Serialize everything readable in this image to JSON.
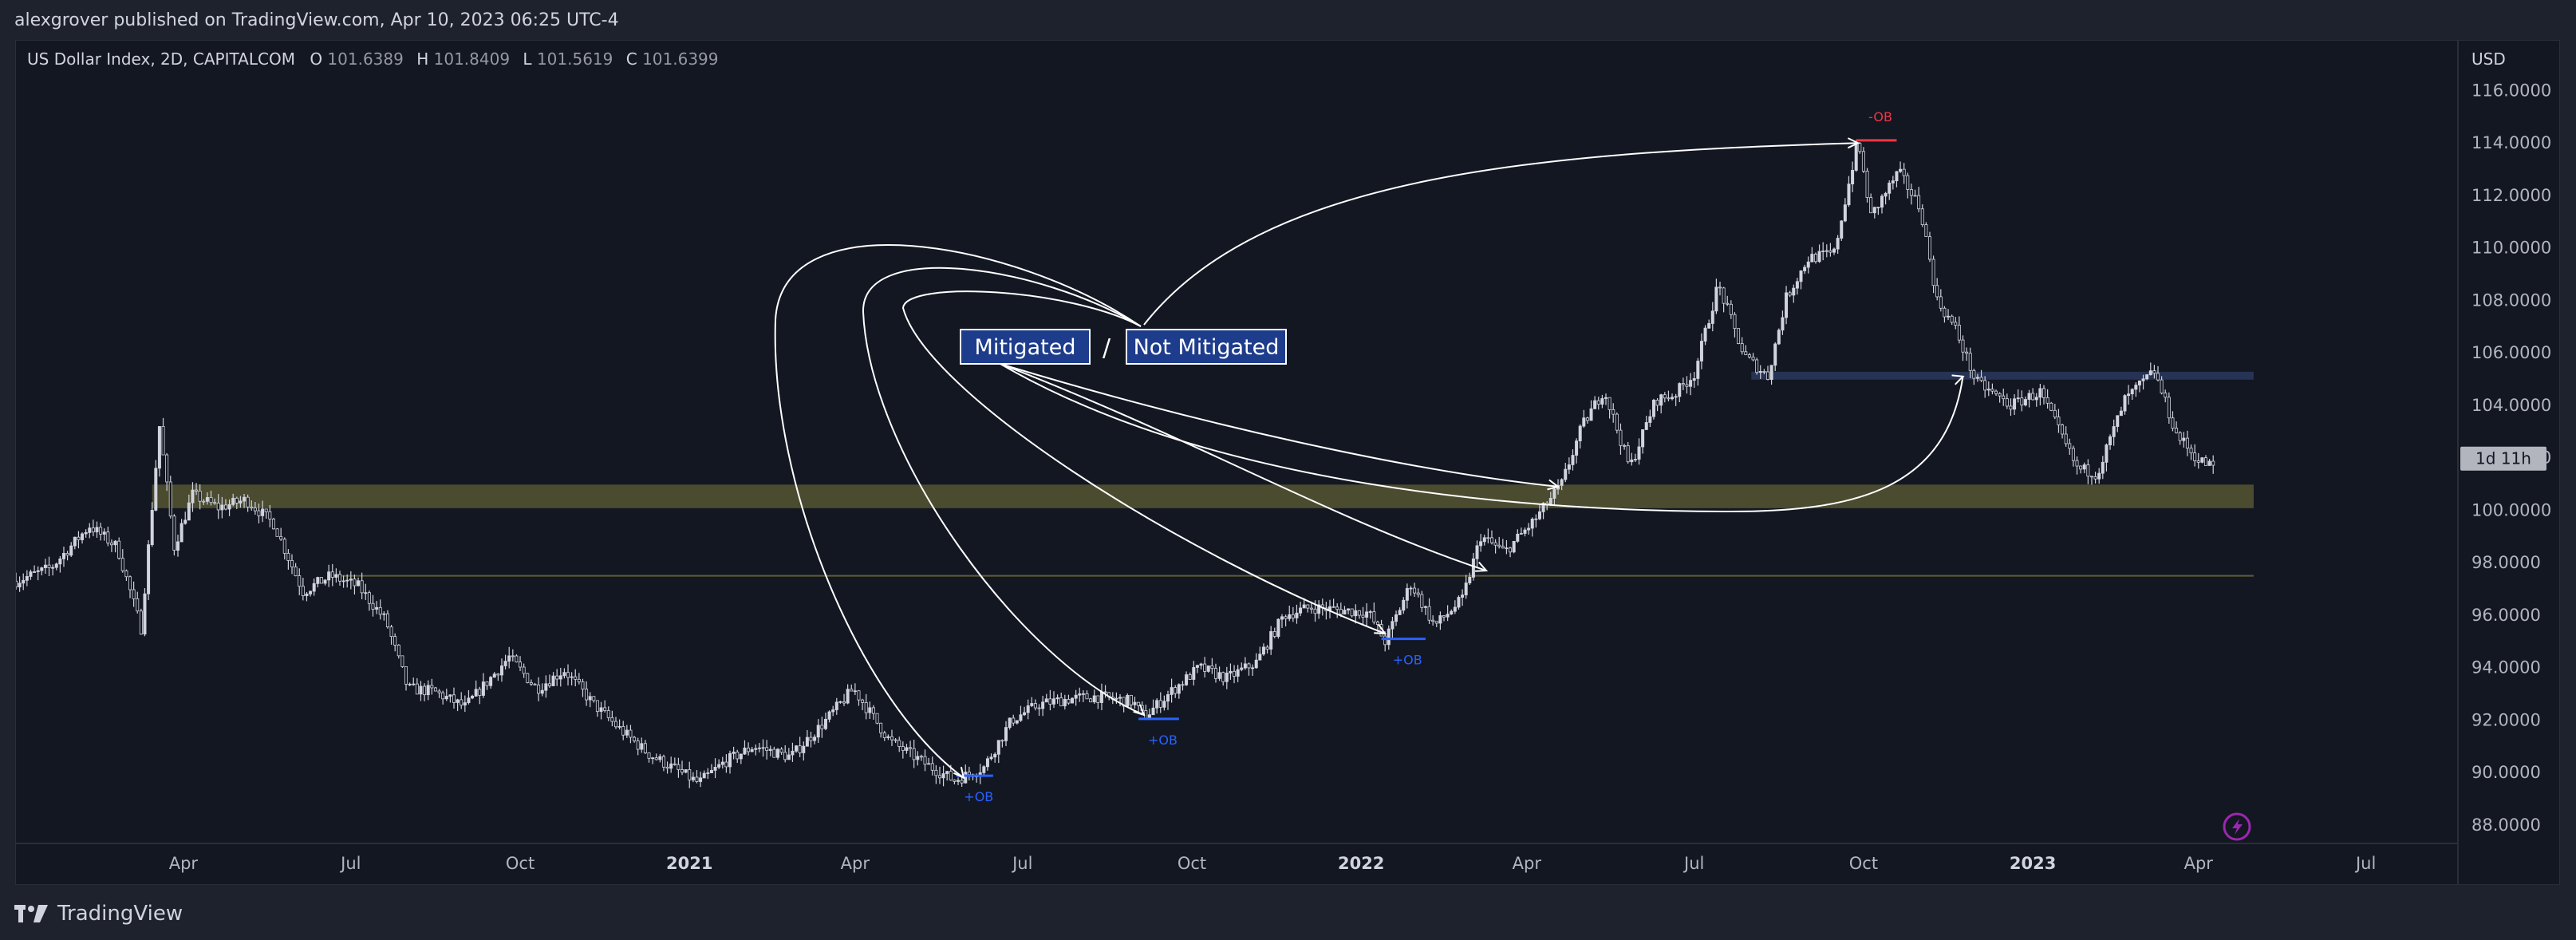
{
  "publisher": "alexgrover published on TradingView.com, Apr 10, 2023 06:25 UTC-4",
  "footer": {
    "brand": "TradingView",
    "logo_icon": "tradingview-logo-icon"
  },
  "colors": {
    "background": "#131722",
    "axis_text": "#b2b5be",
    "candle": "#d1d4dc",
    "zone_yellow": "#5f5e36",
    "zone_blue": "#2d3e66",
    "ob_bull": "#2962ff",
    "ob_bear": "#f23645",
    "arrow": "#ffffff",
    "label_bg": "#1e3c8c"
  },
  "chart_data": {
    "type": "candlestick",
    "symbol_title": "US Dollar Index, 2D, CAPITALCOM",
    "ohlc": {
      "open_label": "O",
      "open": "101.6389",
      "high_label": "H",
      "high": "101.8409",
      "low_label": "L",
      "low": "101.5619",
      "close_label": "C",
      "close": "101.6399"
    },
    "currency": "USD",
    "ylim": [
      87.3,
      117.9
    ],
    "y_ticks": [
      "116.0000",
      "114.0000",
      "112.0000",
      "110.0000",
      "108.0000",
      "106.0000",
      "104.0000",
      "102.0000",
      "100.0000",
      "98.0000",
      "96.0000",
      "94.0000",
      "92.0000",
      "90.0000",
      "88.0000"
    ],
    "time_ticks": [
      {
        "label": "Apr",
        "t": "2020-04-01",
        "bold": false
      },
      {
        "label": "Jul",
        "t": "2020-07-01",
        "bold": false
      },
      {
        "label": "Oct",
        "t": "2020-10-01",
        "bold": false
      },
      {
        "label": "2021",
        "t": "2021-01-01",
        "bold": true
      },
      {
        "label": "Apr",
        "t": "2021-04-01",
        "bold": false
      },
      {
        "label": "Jul",
        "t": "2021-07-01",
        "bold": false
      },
      {
        "label": "Oct",
        "t": "2021-10-01",
        "bold": false
      },
      {
        "label": "2022",
        "t": "2022-01-01",
        "bold": true
      },
      {
        "label": "Apr",
        "t": "2022-04-01",
        "bold": false
      },
      {
        "label": "Jul",
        "t": "2022-07-01",
        "bold": false
      },
      {
        "label": "Oct",
        "t": "2022-10-01",
        "bold": false
      },
      {
        "label": "2023",
        "t": "2023-01-01",
        "bold": true
      },
      {
        "label": "Apr",
        "t": "2023-04-01",
        "bold": false
      },
      {
        "label": "Jul",
        "t": "2023-07-01",
        "bold": false
      }
    ],
    "xlim": [
      "2020-01-01",
      "2023-08-20"
    ],
    "price_path": [
      [
        "2020-01-01",
        97.3
      ],
      [
        "2020-01-20",
        97.8
      ],
      [
        "2020-02-10",
        99.4
      ],
      [
        "2020-02-25",
        98.6
      ],
      [
        "2020-03-09",
        95.5
      ],
      [
        "2020-03-19",
        103.2
      ],
      [
        "2020-03-27",
        98.6
      ],
      [
        "2020-04-06",
        100.6
      ],
      [
        "2020-04-20",
        100.1
      ],
      [
        "2020-05-05",
        100.4
      ],
      [
        "2020-05-20",
        99.5
      ],
      [
        "2020-06-05",
        96.9
      ],
      [
        "2020-06-20",
        97.5
      ],
      [
        "2020-07-05",
        97.1
      ],
      [
        "2020-07-20",
        95.8
      ],
      [
        "2020-08-01",
        93.2
      ],
      [
        "2020-08-15",
        93.1
      ],
      [
        "2020-09-01",
        92.5
      ],
      [
        "2020-09-25",
        94.4
      ],
      [
        "2020-10-10",
        93.2
      ],
      [
        "2020-10-25",
        93.9
      ],
      [
        "2020-11-10",
        92.6
      ],
      [
        "2020-11-25",
        91.6
      ],
      [
        "2020-12-10",
        90.7
      ],
      [
        "2020-12-25",
        90.1
      ],
      [
        "2021-01-06",
        89.6
      ],
      [
        "2021-01-20",
        90.4
      ],
      [
        "2021-02-05",
        91.0
      ],
      [
        "2021-02-25",
        90.6
      ],
      [
        "2021-03-15",
        91.9
      ],
      [
        "2021-03-31",
        93.2
      ],
      [
        "2021-04-20",
        91.2
      ],
      [
        "2021-05-10",
        90.3
      ],
      [
        "2021-05-25",
        89.7
      ],
      [
        "2021-06-10",
        90.2
      ],
      [
        "2021-06-25",
        92.0
      ],
      [
        "2021-07-10",
        92.6
      ],
      [
        "2021-07-25",
        92.8
      ],
      [
        "2021-08-10",
        92.9
      ],
      [
        "2021-08-30",
        92.7
      ],
      [
        "2021-09-05",
        92.1
      ],
      [
        "2021-09-20",
        93.1
      ],
      [
        "2021-10-05",
        94.0
      ],
      [
        "2021-10-20",
        93.6
      ],
      [
        "2021-11-05",
        94.2
      ],
      [
        "2021-11-20",
        96.0
      ],
      [
        "2021-12-05",
        96.3
      ],
      [
        "2021-12-20",
        96.2
      ],
      [
        "2022-01-05",
        96.1
      ],
      [
        "2022-01-14",
        95.0
      ],
      [
        "2022-01-28",
        97.2
      ],
      [
        "2022-02-10",
        95.6
      ],
      [
        "2022-02-25",
        96.6
      ],
      [
        "2022-03-07",
        99.0
      ],
      [
        "2022-03-20",
        98.4
      ],
      [
        "2022-04-05",
        99.6
      ],
      [
        "2022-04-20",
        101.0
      ],
      [
        "2022-05-01",
        103.2
      ],
      [
        "2022-05-13",
        104.6
      ],
      [
        "2022-05-27",
        101.6
      ],
      [
        "2022-06-10",
        104.2
      ],
      [
        "2022-06-20",
        104.4
      ],
      [
        "2022-07-01",
        105.2
      ],
      [
        "2022-07-14",
        108.6
      ],
      [
        "2022-07-28",
        105.9
      ],
      [
        "2022-08-10",
        105.1
      ],
      [
        "2022-08-20",
        108.1
      ],
      [
        "2022-09-01",
        109.6
      ],
      [
        "2022-09-15",
        109.8
      ],
      [
        "2022-09-28",
        114.1
      ],
      [
        "2022-10-05",
        111.2
      ],
      [
        "2022-10-20",
        112.9
      ],
      [
        "2022-11-01",
        111.5
      ],
      [
        "2022-11-10",
        108.0
      ],
      [
        "2022-11-20",
        106.9
      ],
      [
        "2022-12-01",
        104.9
      ],
      [
        "2022-12-20",
        104.0
      ],
      [
        "2023-01-05",
        104.5
      ],
      [
        "2023-01-25",
        101.6
      ],
      [
        "2023-02-05",
        101.4
      ],
      [
        "2023-02-20",
        104.2
      ],
      [
        "2023-03-08",
        105.3
      ],
      [
        "2023-03-20",
        102.9
      ],
      [
        "2023-04-01",
        101.9
      ],
      [
        "2023-04-10",
        101.64
      ]
    ],
    "zones": [
      {
        "type": "yellow-band",
        "x0": "2020-03-15",
        "x1": "2023-05-01",
        "y0": 100.08,
        "y1": 100.98
      },
      {
        "type": "yellow-line",
        "x0": "2020-06-20",
        "x1": "2023-05-01",
        "y": 97.5
      },
      {
        "type": "blue-band",
        "x0": "2022-08-01",
        "x1": "2023-05-01",
        "y0": 104.98,
        "y1": 105.28
      }
    ],
    "order_blocks": [
      {
        "label": "+OB",
        "kind": "bull",
        "x0": "2021-05-26",
        "x1": "2021-06-15",
        "y": 89.88
      },
      {
        "label": "+OB",
        "kind": "bull",
        "x0": "2021-09-02",
        "x1": "2021-09-24",
        "y": 92.05
      },
      {
        "label": "+OB",
        "kind": "bull",
        "x0": "2022-01-12",
        "x1": "2022-02-05",
        "y": 95.1
      },
      {
        "label": "-OB",
        "kind": "bear",
        "x0": "2022-09-27",
        "x1": "2022-10-19",
        "y": 114.1
      }
    ],
    "labels": {
      "mitigated": "Mitigated",
      "separator": "/",
      "not_mitigated": "Not Mitigated",
      "countdown": "1d 11h"
    }
  }
}
